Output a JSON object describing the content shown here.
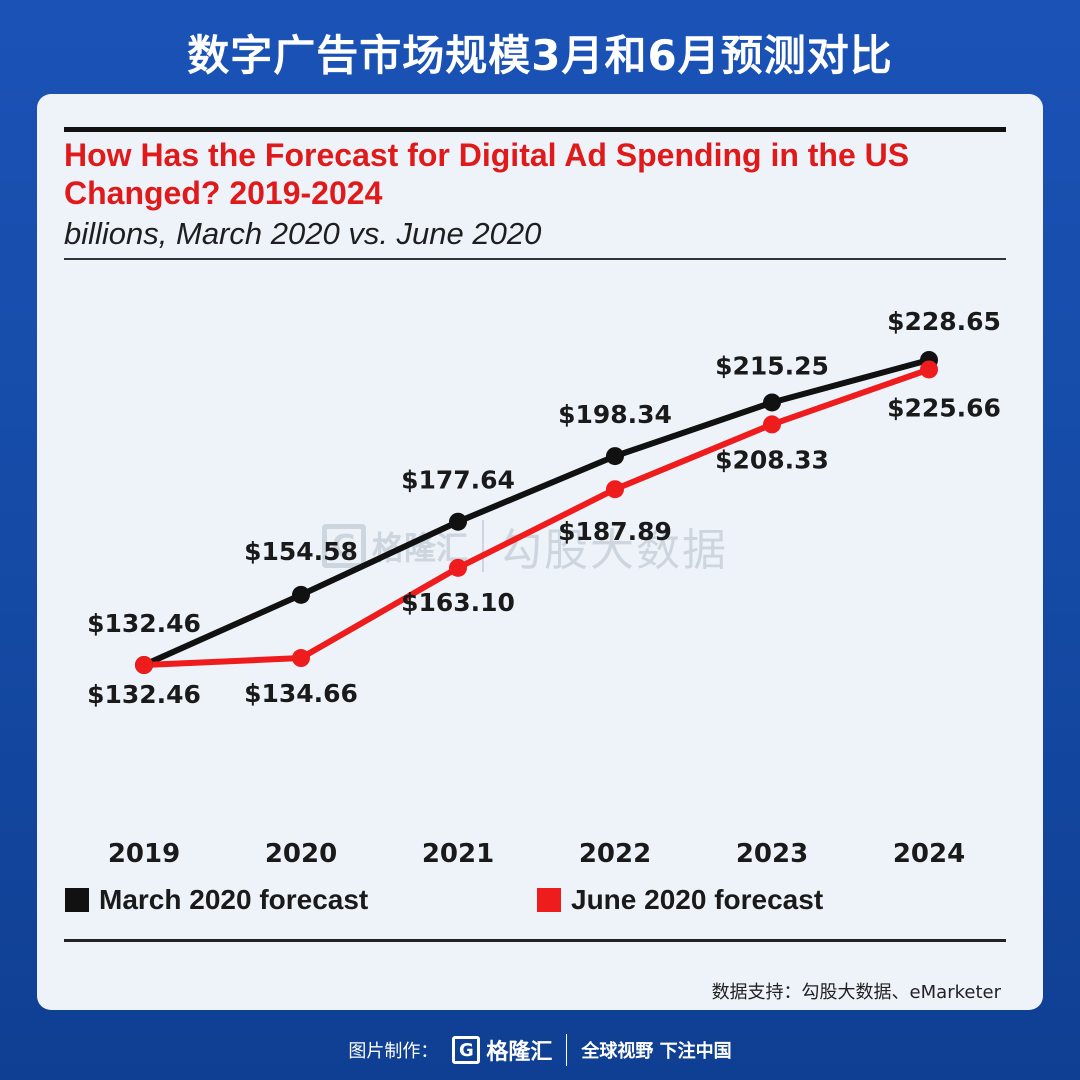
{
  "banner": {
    "title": "数字广告市场规模3月和6月预测对比"
  },
  "watermark": {
    "logo_letter": "G",
    "brand": "格隆汇",
    "text": "勾股大数据"
  },
  "legend": {
    "march_label": "March 2020 forecast",
    "june_label": "June 2020 forecast"
  },
  "source": "数据支持：勾股大数据、eMarketer",
  "footer": {
    "label": "图片制作：",
    "logo_letter": "G",
    "brand": "格隆汇",
    "slogan": "全球视野 下注中国"
  },
  "colors": {
    "march": "#111111",
    "june": "#ee1c1c",
    "title": "#e01a1a"
  },
  "chart_data": {
    "type": "line",
    "title": "How Has the Forecast for Digital Ad Spending in the US Changed? 2019-2024",
    "subtitle": "billions, March 2020 vs. June 2020",
    "categories": [
      "2019",
      "2020",
      "2021",
      "2022",
      "2023",
      "2024"
    ],
    "series": [
      {
        "name": "March 2020 forecast",
        "values": [
          132.46,
          154.58,
          177.64,
          198.34,
          215.25,
          228.65
        ],
        "labels": [
          "$132.46",
          "$154.58",
          "$177.64",
          "$198.34",
          "$215.25",
          "$228.65"
        ]
      },
      {
        "name": "June 2020 forecast",
        "values": [
          132.46,
          134.66,
          163.1,
          187.89,
          208.33,
          225.66
        ],
        "labels": [
          "$132.46",
          "$134.66",
          "$163.10",
          "$187.89",
          "$208.33",
          "$225.66"
        ]
      }
    ],
    "ylim": [
      100,
      240
    ],
    "grid": false,
    "legend_position": "bottom"
  }
}
